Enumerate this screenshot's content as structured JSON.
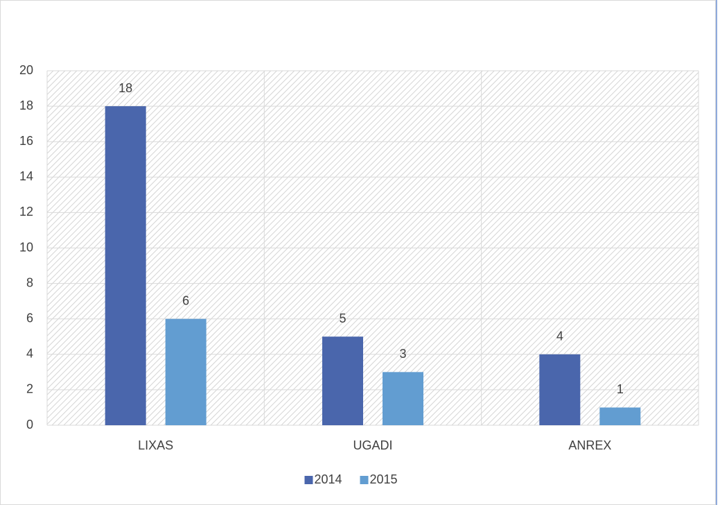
{
  "chart_data": {
    "type": "bar",
    "categories": [
      "LIXAS",
      "UGADI",
      "ANREX"
    ],
    "series": [
      {
        "name": "2014",
        "color": "#4a66ac",
        "values": [
          18,
          5,
          4
        ]
      },
      {
        "name": "2015",
        "color": "#629dd1",
        "values": [
          6,
          3,
          1
        ]
      }
    ],
    "ylim": [
      0,
      20
    ],
    "yticks": [
      0,
      2,
      4,
      6,
      8,
      10,
      12,
      14,
      16,
      18,
      20
    ],
    "grid": true,
    "legend": "bottom"
  }
}
